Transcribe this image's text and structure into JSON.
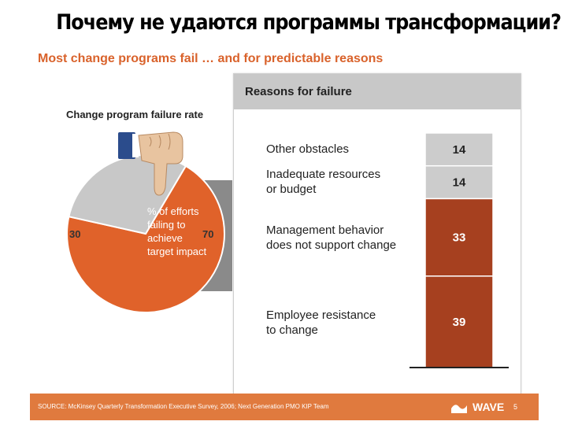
{
  "slide_title": "Почему не удаются программы трансформации?",
  "subtitle": "Most change programs fail … and for predictable reasons",
  "pie": {
    "title": "Change program failure rate",
    "label_fail": "70",
    "label_success": "30",
    "description": "% of efforts failing to achieve target impact",
    "colors": {
      "fail": "#e0622a",
      "success": "#c8c8c8"
    }
  },
  "panel": {
    "title": "Reasons for failure"
  },
  "chart_data": [
    {
      "type": "pie",
      "title": "Change program failure rate",
      "slices": [
        {
          "label": "% of efforts failing to achieve target impact",
          "value": 70
        },
        {
          "label": "",
          "value": 30
        }
      ]
    },
    {
      "type": "bar",
      "title": "Reasons for failure",
      "stacked": true,
      "categories": [
        "Other obstacles",
        "Inadequate resources\nor budget",
        "Management behavior\ndoes not support change",
        "Employee resistance\nto change"
      ],
      "values": [
        14,
        14,
        33,
        39
      ],
      "value_labels": [
        "14",
        "14",
        "33",
        "39"
      ],
      "colors": [
        "#cccccc",
        "#cccccc",
        "#a6401f",
        "#a6401f"
      ],
      "label_colors": [
        "#222222",
        "#222222",
        "#ffffff",
        "#ffffff"
      ]
    }
  ],
  "footer": {
    "source": "SOURCE: McKinsey Quarterly Transformation Executive Survey, 2006; Next Generation PMO KIP Team",
    "brand": "WAVE",
    "page": "5"
  }
}
